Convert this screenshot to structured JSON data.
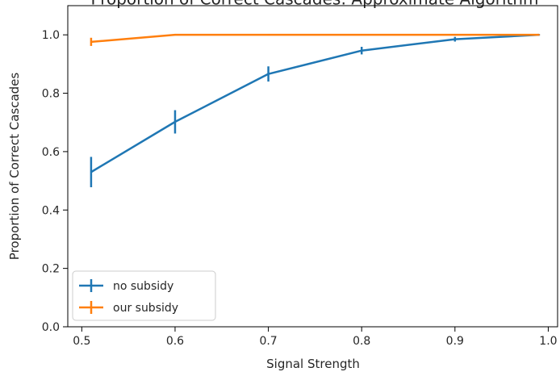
{
  "chart_data": {
    "type": "line",
    "title": "Proportion of Correct Cascades: Approximate Algorithm",
    "xlabel": "Signal Strength",
    "ylabel": "Proportion of Correct Cascades",
    "xlim": [
      0.485,
      1.01
    ],
    "ylim": [
      0.0,
      1.1
    ],
    "x_ticks": [
      "0.5",
      "0.6",
      "0.7",
      "0.8",
      "0.9",
      "1.0"
    ],
    "y_ticks": [
      "0.0",
      "0.2",
      "0.4",
      "0.6",
      "0.8",
      "1.0"
    ],
    "grid": false,
    "legend_position": "lower-left",
    "series": [
      {
        "name": "no subsidy",
        "color": "#1f77b4",
        "x": [
          0.51,
          0.6,
          0.7,
          0.8,
          0.9,
          0.99
        ],
        "y": [
          0.53,
          0.702,
          0.866,
          0.946,
          0.985,
          1.0
        ],
        "error": [
          0.052,
          0.04,
          0.026,
          0.013,
          0.008,
          0.003
        ]
      },
      {
        "name": "our subsidy",
        "color": "#ff7f0e",
        "x": [
          0.51,
          0.6,
          0.7,
          0.8,
          0.9,
          0.99
        ],
        "y": [
          0.976,
          1.0,
          1.0,
          1.0,
          1.0,
          1.0
        ],
        "error": [
          0.014,
          0.002,
          0.002,
          0.002,
          0.002,
          0.002
        ]
      }
    ]
  }
}
